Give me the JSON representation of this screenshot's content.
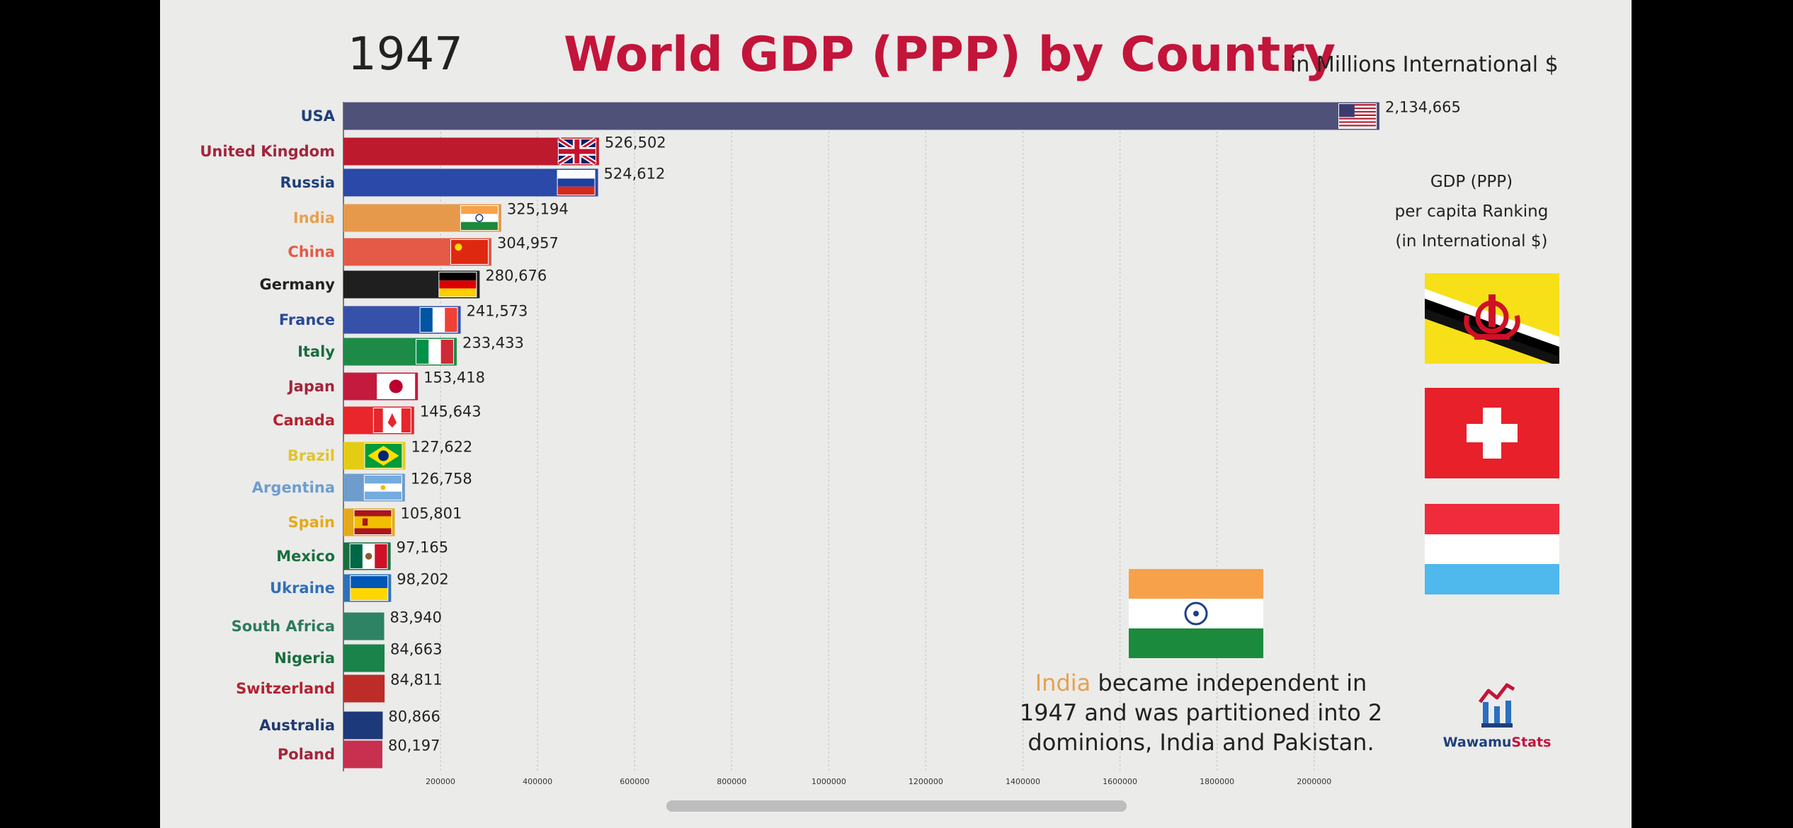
{
  "header": {
    "year": "1947",
    "title": "World GDP (PPP) by Country",
    "units": "in Millions International $"
  },
  "per_capita": {
    "title_lines": [
      "GDP (PPP)",
      "per capita Ranking",
      "(in International $)"
    ],
    "flags": [
      "brunei-flag",
      "switzerland-flag",
      "luxembourg-flag"
    ]
  },
  "event": {
    "flag": "india-flag",
    "highlight": "India",
    "text": " became independent in 1947 and was partitioned into 2 dominions, India and Pakistan."
  },
  "logo": {
    "name_part1": "Wawamu",
    "name_part2": "Stats"
  },
  "chart_data": {
    "type": "bar",
    "orientation": "horizontal",
    "categories": [
      "USA",
      "United Kingdom",
      "Russia",
      "India",
      "China",
      "Germany",
      "France",
      "Italy",
      "Japan",
      "Canada",
      "Brazil",
      "Argentina",
      "Spain",
      "Mexico",
      "Ukraine",
      "South Africa",
      "Nigeria",
      "Switzerland",
      "Australia",
      "Poland"
    ],
    "values": [
      2134665,
      526502,
      524612,
      325194,
      304957,
      280676,
      241573,
      233433,
      153418,
      145643,
      127622,
      126758,
      105801,
      97165,
      98202,
      83940,
      84663,
      84811,
      80866,
      80197
    ],
    "value_labels": [
      "2,134,665",
      "526,502",
      "524,612",
      "325,194",
      "304,957",
      "280,676",
      "241,573",
      "233,433",
      "153,418",
      "145,643",
      "127,622",
      "126,758",
      "105,801",
      "97,165",
      "98,202",
      "83,940",
      "84,663",
      "84,811",
      "80,866",
      "80,197"
    ],
    "bar_colors": [
      "#505179",
      "#bd1a2d",
      "#2a49a8",
      "#e6994b",
      "#e45a46",
      "#1f1f1f",
      "#3651a9",
      "#1d8b47",
      "#c41a3d",
      "#e8262b",
      "#e4cc14",
      "#6e9dcc",
      "#e5aa1a",
      "#1a6e3d",
      "#2f71b9",
      "#2e8364",
      "#1a8349",
      "#bd2c28",
      "#1c3a79",
      "#c7304f"
    ],
    "label_colors": [
      "#1f3f7a",
      "#a3243b",
      "#1f3f7a",
      "#e8a04c",
      "#e45a46",
      "#222222",
      "#2a4a96",
      "#1a6e3d",
      "#a3243b",
      "#b3232f",
      "#e0c52a",
      "#6e9dcc",
      "#e5aa1a",
      "#1a6e3d",
      "#2f71b9",
      "#2e7a5e",
      "#1a6e3d",
      "#b3232f",
      "#1f3a6e",
      "#a3243b"
    ],
    "label_y": [
      164,
      214,
      258,
      308,
      356,
      402,
      452,
      497,
      546,
      594,
      644,
      689,
      738,
      786,
      831,
      885,
      930,
      973,
      1025,
      1066
    ],
    "flags": [
      "usa",
      "uk",
      "russia",
      "india",
      "china",
      "germany",
      "france",
      "italy",
      "japan",
      "canada",
      "brazil",
      "argentina",
      "spain",
      "mexico",
      "ukraine",
      "",
      "",
      "",
      "",
      ""
    ],
    "xticks": [
      200000,
      400000,
      600000,
      800000,
      1000000,
      1200000,
      1400000,
      1600000,
      1800000,
      2000000
    ],
    "xtick_labels": [
      "200000",
      "400000",
      "600000",
      "800000",
      "1000000",
      "1200000",
      "1400000",
      "1600000",
      "1800000",
      "2000000"
    ],
    "xlim": [
      0,
      2134665
    ],
    "grid": true
  }
}
